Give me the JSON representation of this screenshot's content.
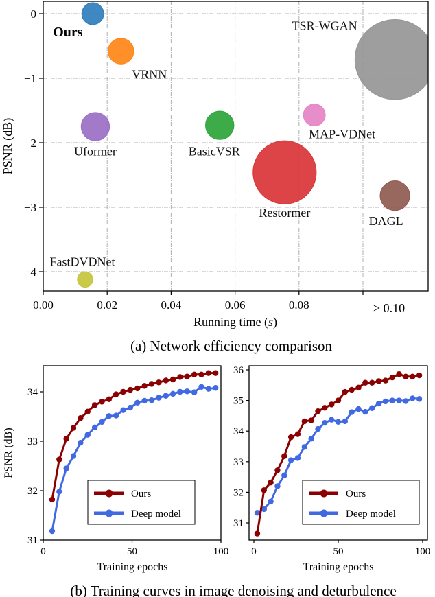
{
  "chart_data": [
    {
      "type": "scatter",
      "subtype": "bubble",
      "caption": "(a) Network efficiency comparison",
      "xlabel": "Running time (s)",
      "ylabel": "PSNR (dB)",
      "xlim": [
        0.0,
        0.121
      ],
      "ylim": [
        -4.35,
        0.2
      ],
      "xticks": [
        0.0,
        0.02,
        0.04,
        0.06,
        0.08,
        0.1
      ],
      "xtick_labels": [
        "0.00",
        "0.02",
        "0.04",
        "0.06",
        "0.08",
        "> 0.10"
      ],
      "yticks": [
        0,
        -1,
        -2,
        -3,
        -4
      ],
      "ytick_labels": [
        "0",
        "−1",
        "−2",
        "−3",
        "−4"
      ],
      "grid": true,
      "points": [
        {
          "name": "Ours",
          "x": 0.0155,
          "y": 0.0,
          "size": 0.17,
          "color": "#2f7ebc",
          "label_bold": true
        },
        {
          "name": "VRNN",
          "x": 0.0243,
          "y": -0.58,
          "size": 0.2,
          "color": "#ff8517"
        },
        {
          "name": "Uformer",
          "x": 0.0163,
          "y": -1.75,
          "size": 0.22,
          "color": "#9b6fc4"
        },
        {
          "name": "BasicVSR",
          "x": 0.0552,
          "y": -1.73,
          "size": 0.22,
          "color": "#2ea43a"
        },
        {
          "name": "MAP-VDNet",
          "x": 0.0848,
          "y": -1.57,
          "size": 0.17,
          "color": "#e584c6"
        },
        {
          "name": "TSR-WGAN",
          "x": 0.11,
          "y": -0.71,
          "size": 0.62,
          "color": "#969696"
        },
        {
          "name": "Restormer",
          "x": 0.0755,
          "y": -2.46,
          "size": 0.49,
          "color": "#d93437"
        },
        {
          "name": "DAGL",
          "x": 0.11,
          "y": -2.82,
          "size": 0.23,
          "color": "#8f5a50"
        },
        {
          "name": "FastDVDNet",
          "x": 0.0131,
          "y": -4.12,
          "size": 0.12,
          "color": "#c5c43a"
        }
      ]
    },
    {
      "type": "line",
      "xlabel": "Training epochs",
      "ylabel": "PSNR (dB)",
      "xlim": [
        0,
        100
      ],
      "ylim": [
        31,
        34.5
      ],
      "xticks": [
        0,
        50,
        100
      ],
      "yticks": [
        31,
        32,
        33,
        34
      ],
      "legend": "lower-right",
      "x": [
        5,
        9,
        13,
        17,
        21,
        25,
        29,
        33,
        37,
        41,
        45,
        49,
        53,
        57,
        61,
        65,
        69,
        73,
        77,
        81,
        85,
        89,
        93,
        97
      ],
      "series": [
        {
          "name": "Ours",
          "color": "#8b0000",
          "values": [
            31.82,
            32.63,
            33.05,
            33.27,
            33.47,
            33.6,
            33.73,
            33.8,
            33.85,
            33.95,
            34.0,
            34.04,
            34.07,
            34.12,
            34.16,
            34.19,
            34.23,
            34.25,
            34.3,
            34.31,
            34.35,
            34.35,
            34.38,
            34.38
          ]
        },
        {
          "name": "Deep model",
          "color": "#4169e1",
          "values": [
            31.18,
            31.98,
            32.45,
            32.7,
            32.97,
            33.13,
            33.28,
            33.39,
            33.51,
            33.52,
            33.63,
            33.68,
            33.78,
            33.82,
            33.83,
            33.88,
            33.92,
            33.96,
            34.0,
            34.01,
            33.99,
            34.1,
            34.06,
            34.08
          ]
        }
      ]
    },
    {
      "type": "line",
      "xlabel": "Training epochs",
      "ylabel": "",
      "xlim": [
        -4,
        102
      ],
      "ylim": [
        30.4,
        36.1
      ],
      "xticks": [
        0,
        50,
        100
      ],
      "yticks": [
        31,
        32,
        33,
        34,
        35,
        36
      ],
      "legend": "lower-right",
      "x": [
        2,
        6,
        10,
        14,
        18,
        22,
        26,
        30,
        34,
        38,
        42,
        46,
        50,
        54,
        58,
        62,
        66,
        70,
        74,
        78,
        82,
        86,
        90,
        94,
        98
      ],
      "series": [
        {
          "name": "Ours",
          "color": "#8b0000",
          "values": [
            30.65,
            32.07,
            32.32,
            32.72,
            33.18,
            33.8,
            33.9,
            34.32,
            34.35,
            34.65,
            34.76,
            34.87,
            35.0,
            35.28,
            35.35,
            35.42,
            35.58,
            35.58,
            35.63,
            35.65,
            35.75,
            35.86,
            35.78,
            35.78,
            35.82
          ]
        },
        {
          "name": "Deep model",
          "color": "#4169e1",
          "values": [
            31.33,
            31.45,
            31.7,
            32.2,
            32.55,
            33.05,
            33.12,
            33.48,
            33.75,
            34.07,
            34.27,
            34.37,
            34.3,
            34.32,
            34.62,
            34.72,
            34.63,
            34.75,
            34.9,
            34.97,
            35.0,
            35.0,
            34.98,
            35.07,
            35.05
          ]
        }
      ]
    }
  ],
  "captions": {
    "a": "(a) Network efficiency comparison",
    "b": "(b) Training curves in image denoising and deturbulence"
  },
  "labels": {
    "a_xlabel_pre": "Running time (",
    "a_xlabel_var": "s",
    "a_xlabel_post": ")",
    "a_ylabel": "PSNR (dB)",
    "b_ylabel": "PSNR (dB)",
    "b_xlabel": "Training epochs"
  }
}
